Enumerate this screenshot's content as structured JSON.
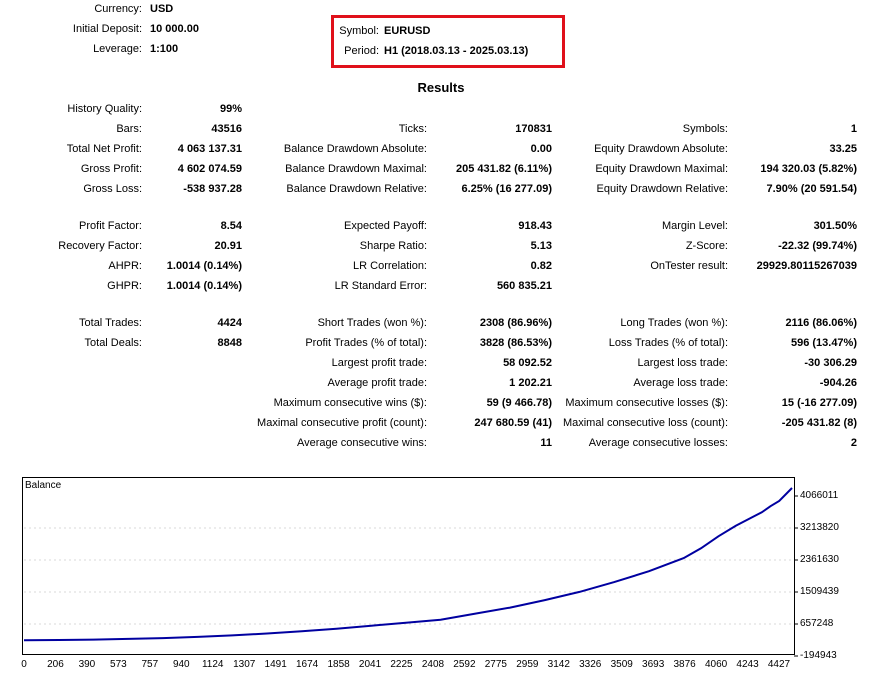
{
  "header": {
    "left": [
      {
        "label": "Currency:",
        "value": "USD"
      },
      {
        "label": "Initial Deposit:",
        "value": "10 000.00"
      },
      {
        "label": "Leverage:",
        "value": "1:100"
      }
    ],
    "right": [
      {
        "label": "Symbol:",
        "value": "EURUSD"
      },
      {
        "label": "Period:",
        "value": "H1 (2018.03.13 - 2025.03.13)"
      }
    ]
  },
  "results_title": "Results",
  "col1": [
    {
      "label": "History Quality:",
      "value": "99%"
    },
    {
      "label": "Bars:",
      "value": "43516"
    },
    {
      "label": "Total Net Profit:",
      "value": "4 063 137.31"
    },
    {
      "label": "Gross Profit:",
      "value": "4 602 074.59"
    },
    {
      "label": "Gross Loss:",
      "value": "-538 937.28"
    },
    {
      "label": "Profit Factor:",
      "value": "8.54"
    },
    {
      "label": "Recovery Factor:",
      "value": "20.91"
    },
    {
      "label": "AHPR:",
      "value": "1.0014 (0.14%)"
    },
    {
      "label": "GHPR:",
      "value": "1.0014 (0.14%)"
    },
    {
      "label": "Total Trades:",
      "value": "4424"
    },
    {
      "label": "Total Deals:",
      "value": "8848"
    }
  ],
  "col2": [
    {
      "label": "Ticks:",
      "value": "170831"
    },
    {
      "label": "Balance Drawdown Absolute:",
      "value": "0.00"
    },
    {
      "label": "Balance Drawdown Maximal:",
      "value": "205 431.82 (6.11%)"
    },
    {
      "label": "Balance Drawdown Relative:",
      "value": "6.25% (16 277.09)"
    },
    {
      "label": "Expected Payoff:",
      "value": "918.43"
    },
    {
      "label": "Sharpe Ratio:",
      "value": "5.13"
    },
    {
      "label": "LR Correlation:",
      "value": "0.82"
    },
    {
      "label": "LR Standard Error:",
      "value": "560 835.21"
    },
    {
      "label": "Short Trades (won %):",
      "value": "2308 (86.96%)"
    },
    {
      "label": "Profit Trades (% of total):",
      "value": "3828 (86.53%)"
    },
    {
      "label": "Largest profit trade:",
      "value": "58 092.52"
    },
    {
      "label": "Average profit trade:",
      "value": "1 202.21"
    },
    {
      "label": "Maximum consecutive wins ($):",
      "value": "59 (9 466.78)"
    },
    {
      "label": "Maximal consecutive profit (count):",
      "value": "247 680.59 (41)"
    },
    {
      "label": "Average consecutive wins:",
      "value": "11"
    }
  ],
  "col3": [
    {
      "label": "Symbols:",
      "value": "1"
    },
    {
      "label": "Equity Drawdown Absolute:",
      "value": "33.25"
    },
    {
      "label": "Equity Drawdown Maximal:",
      "value": "194 320.03 (5.82%)"
    },
    {
      "label": "Equity Drawdown Relative:",
      "value": "7.90% (20 591.54)"
    },
    {
      "label": "Margin Level:",
      "value": "301.50%"
    },
    {
      "label": "Z-Score:",
      "value": "-22.32 (99.74%)"
    },
    {
      "label": "OnTester result:",
      "value": "29929.80115267039"
    },
    {
      "label": "Long Trades (won %):",
      "value": "2116 (86.06%)"
    },
    {
      "label": "Loss Trades (% of total):",
      "value": "596 (13.47%)"
    },
    {
      "label": "Largest loss trade:",
      "value": "-30 306.29"
    },
    {
      "label": "Average loss trade:",
      "value": "-904.26"
    },
    {
      "label": "Maximum consecutive losses ($):",
      "value": "15 (-16 277.09)"
    },
    {
      "label": "Maximal consecutive loss (count):",
      "value": "-205 431.82 (8)"
    },
    {
      "label": "Average consecutive losses:",
      "value": "2"
    }
  ],
  "chart_data": {
    "type": "line",
    "title": "Balance",
    "line_color": "#0000a0",
    "y_ticks": [
      "4066011",
      "3213820",
      "2361630",
      "1509439",
      "657248",
      "-194943"
    ],
    "x_ticks": [
      "0",
      "206",
      "390",
      "573",
      "757",
      "940",
      "1124",
      "1307",
      "1491",
      "1674",
      "1858",
      "2041",
      "2225",
      "2408",
      "2592",
      "2775",
      "2959",
      "3142",
      "3326",
      "3509",
      "3693",
      "3876",
      "4060",
      "4243",
      "4427"
    ],
    "ylim": [
      -194943,
      4066011
    ],
    "x": [
      0,
      200,
      400,
      600,
      800,
      1000,
      1200,
      1400,
      1600,
      1800,
      2000,
      2200,
      2400,
      2600,
      2800,
      3000,
      3200,
      3400,
      3600,
      3800,
      3900,
      4000,
      4100,
      4200,
      4250,
      4300,
      4350,
      4424
    ],
    "y": [
      10000,
      18000,
      30000,
      48000,
      70000,
      100000,
      140000,
      190000,
      250000,
      320000,
      400000,
      480000,
      560000,
      720000,
      880000,
      1080000,
      1300000,
      1560000,
      1850000,
      2200000,
      2460000,
      2780000,
      3060000,
      3300000,
      3420000,
      3580000,
      3720000,
      4066011
    ]
  }
}
